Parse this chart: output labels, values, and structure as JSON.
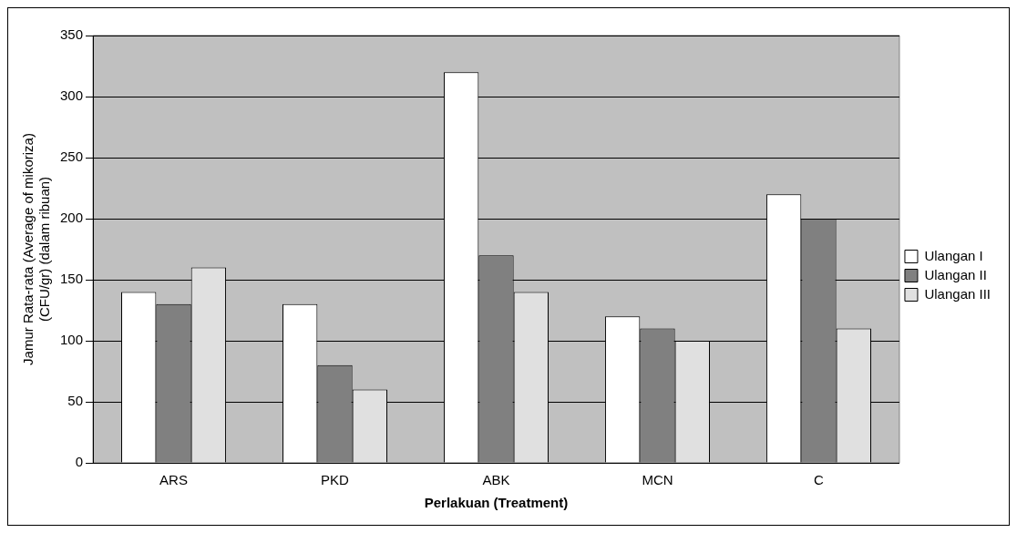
{
  "chart_data": {
    "type": "bar",
    "xlabel": "Perlakuan (Treatment)",
    "ylabel": "Jamur Rata-rata (Average of mikoriza)\n(CFU/gr) (dalam ribuan)",
    "categories": [
      "ARS",
      "PKD",
      "ABK",
      "MCN",
      "C"
    ],
    "series": [
      {
        "name": "Ulangan I",
        "color": "#ffffff",
        "values": [
          140,
          130,
          320,
          120,
          220
        ]
      },
      {
        "name": "Ulangan II",
        "color": "#808080",
        "values": [
          130,
          80,
          170,
          110,
          200
        ]
      },
      {
        "name": "Ulangan III",
        "color": "#e0e0e0",
        "values": [
          160,
          60,
          140,
          100,
          110
        ]
      }
    ],
    "ylim": [
      0,
      350
    ],
    "yticks": [
      0,
      50,
      100,
      150,
      200,
      250,
      300,
      350
    ],
    "grid": "y",
    "legend": "right"
  }
}
